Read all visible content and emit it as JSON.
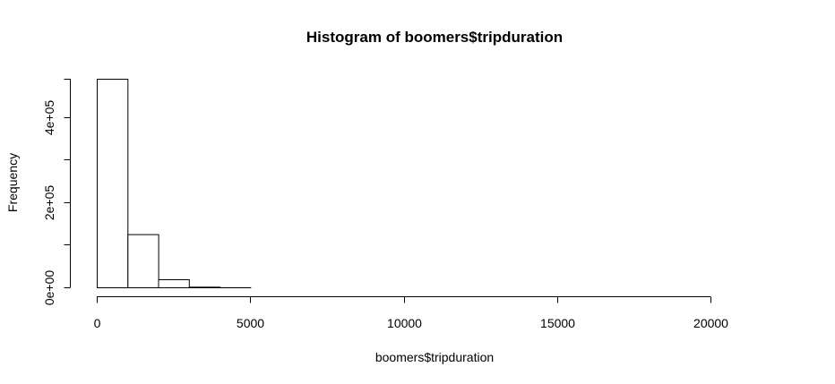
{
  "chart_data": {
    "type": "bar",
    "title": "Histogram of boomers$tripduration",
    "xlabel": "boomers$tripduration",
    "ylabel": "Frequency",
    "bin_width": 1000,
    "bins": [
      {
        "start": 0,
        "end": 1000,
        "count": 490000
      },
      {
        "start": 1000,
        "end": 2000,
        "count": 125000
      },
      {
        "start": 2000,
        "end": 3000,
        "count": 19000
      },
      {
        "start": 3000,
        "end": 4000,
        "count": 1500
      },
      {
        "start": 4000,
        "end": 5000,
        "count": 150
      },
      {
        "start": 5000,
        "end": 6000,
        "count": 60
      },
      {
        "start": 6000,
        "end": 7000,
        "count": 30
      },
      {
        "start": 7000,
        "end": 8000,
        "count": 20
      },
      {
        "start": 8000,
        "end": 9000,
        "count": 15
      },
      {
        "start": 9000,
        "end": 10000,
        "count": 10
      },
      {
        "start": 10000,
        "end": 11000,
        "count": 8
      },
      {
        "start": 11000,
        "end": 12000,
        "count": 6
      },
      {
        "start": 12000,
        "end": 13000,
        "count": 5
      },
      {
        "start": 13000,
        "end": 14000,
        "count": 4
      },
      {
        "start": 14000,
        "end": 15000,
        "count": 3
      },
      {
        "start": 15000,
        "end": 16000,
        "count": 3
      },
      {
        "start": 16000,
        "end": 17000,
        "count": 2
      },
      {
        "start": 17000,
        "end": 18000,
        "count": 2
      },
      {
        "start": 18000,
        "end": 19000,
        "count": 1
      },
      {
        "start": 19000,
        "end": 20000,
        "count": 1
      },
      {
        "start": 20000,
        "end": 21000,
        "count": 1
      },
      {
        "start": 21000,
        "end": 22000,
        "count": 1
      }
    ],
    "xlim": [
      0,
      22000
    ],
    "ylim": [
      0,
      490000
    ],
    "x_ticks": [
      {
        "value": 0,
        "label": "0"
      },
      {
        "value": 5000,
        "label": "5000"
      },
      {
        "value": 10000,
        "label": "10000"
      },
      {
        "value": 15000,
        "label": "15000"
      },
      {
        "value": 20000,
        "label": "20000"
      }
    ],
    "y_ticks": [
      {
        "value": 0,
        "label": "0e+00"
      },
      {
        "value": 100000,
        "label": ""
      },
      {
        "value": 200000,
        "label": "2e+05"
      },
      {
        "value": 300000,
        "label": ""
      },
      {
        "value": 400000,
        "label": "4e+05"
      },
      {
        "value": 490000,
        "label": ""
      }
    ],
    "grid": false,
    "colors": {
      "bar_fill": "#ffffff",
      "bar_stroke": "#000000"
    }
  }
}
